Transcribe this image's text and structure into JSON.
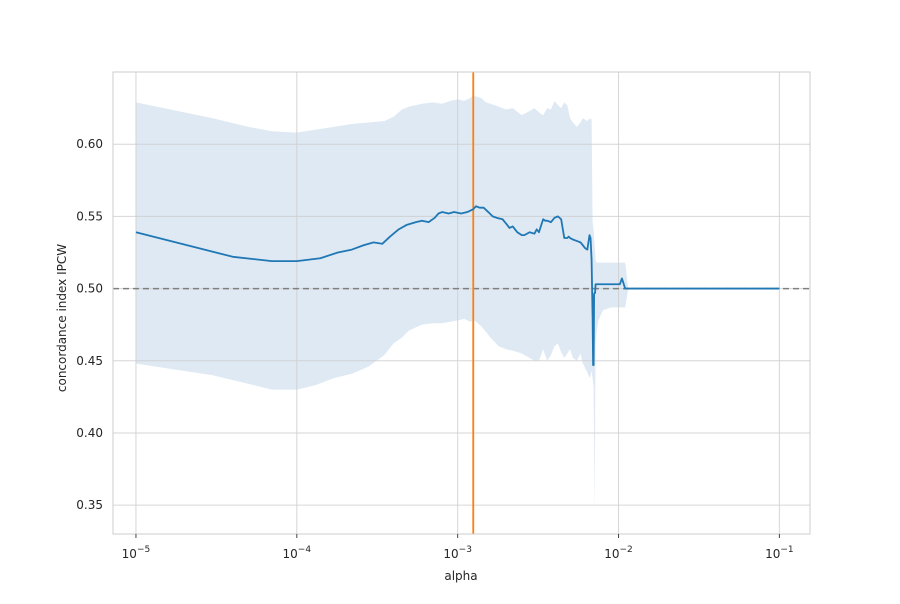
{
  "chart_data": {
    "type": "line",
    "title": "",
    "xlabel": "alpha",
    "ylabel": "concordance index IPCW",
    "x_scale": "log",
    "xlim": [
      7.2e-06,
      0.155
    ],
    "ylim": [
      0.33,
      0.65
    ],
    "grid": true,
    "x_ticks": [
      {
        "value": 1e-05,
        "base": "10",
        "exp": "−5"
      },
      {
        "value": 0.0001,
        "base": "10",
        "exp": "−4"
      },
      {
        "value": 0.001,
        "base": "10",
        "exp": "−3"
      },
      {
        "value": 0.01,
        "base": "10",
        "exp": "−2"
      },
      {
        "value": 0.1,
        "base": "10",
        "exp": "−1"
      }
    ],
    "y_ticks": [
      {
        "value": 0.35,
        "label": "0.35"
      },
      {
        "value": 0.4,
        "label": "0.40"
      },
      {
        "value": 0.45,
        "label": "0.45"
      },
      {
        "value": 0.5,
        "label": "0.50"
      },
      {
        "value": 0.55,
        "label": "0.55"
      },
      {
        "value": 0.6,
        "label": "0.60"
      }
    ],
    "colors": {
      "line": "#1f77b4",
      "band": "#dce8f2",
      "reference": "#7f7f7f",
      "best_alpha": "#ff7f0e",
      "grid": "#cfcfcf",
      "spine": "#cccccc"
    },
    "reference_line": {
      "y": 0.5,
      "style": "dashed"
    },
    "best_alpha_line": {
      "x": 0.00125
    },
    "series": [
      {
        "type": "line",
        "x": [
          1e-05,
          4e-05,
          7e-05,
          0.0001,
          0.00014,
          0.00018,
          0.00022,
          0.00026,
          0.0003,
          0.00034,
          0.00038,
          0.00043,
          0.00048,
          0.00055,
          0.0006,
          0.00066,
          0.00072,
          0.00076,
          0.0008,
          0.00088,
          0.00095,
          0.00105,
          0.00115,
          0.00125,
          0.0013,
          0.00137,
          0.00145,
          0.00155,
          0.00165,
          0.00175,
          0.0019,
          0.002,
          0.0021,
          0.0022,
          0.00235,
          0.0025,
          0.0026,
          0.0028,
          0.003,
          0.0031,
          0.0032,
          0.0034,
          0.0035,
          0.0036,
          0.0038,
          0.004,
          0.0042,
          0.0044,
          0.0046,
          0.0048,
          0.0049,
          0.005,
          0.0052,
          0.0055,
          0.0058,
          0.006,
          0.0062,
          0.0064,
          0.0066,
          0.0067,
          0.0068,
          0.0069,
          0.00695,
          0.007,
          0.00705,
          0.0071,
          0.00715,
          0.0072,
          0.0073,
          0.0075,
          0.008,
          0.009,
          0.0098,
          0.0102,
          0.0105,
          0.011,
          0.012,
          0.02,
          0.05,
          0.1
        ],
        "y": [
          0.539,
          0.522,
          0.519,
          0.519,
          0.521,
          0.525,
          0.527,
          0.53,
          0.532,
          0.531,
          0.536,
          0.541,
          0.544,
          0.546,
          0.547,
          0.546,
          0.549,
          0.552,
          0.553,
          0.552,
          0.553,
          0.552,
          0.553,
          0.555,
          0.557,
          0.556,
          0.556,
          0.553,
          0.55,
          0.549,
          0.548,
          0.545,
          0.542,
          0.543,
          0.539,
          0.537,
          0.537,
          0.539,
          0.538,
          0.541,
          0.539,
          0.548,
          0.547,
          0.547,
          0.546,
          0.549,
          0.55,
          0.548,
          0.535,
          0.535,
          0.536,
          0.535,
          0.534,
          0.533,
          0.532,
          0.53,
          0.528,
          0.527,
          0.537,
          0.535,
          0.52,
          0.48,
          0.447,
          0.447,
          0.496,
          0.497,
          0.497,
          0.503,
          0.503,
          0.503,
          0.503,
          0.503,
          0.503,
          0.503,
          0.507,
          0.5,
          0.5,
          0.5,
          0.5,
          0.5
        ]
      },
      {
        "type": "band",
        "x": [
          1e-05,
          3e-05,
          5e-05,
          7e-05,
          0.0001,
          0.00013,
          0.00017,
          0.00022,
          0.00028,
          0.00035,
          0.0004,
          0.00045,
          0.0005,
          0.0006,
          0.0007,
          0.0008,
          0.0009,
          0.001,
          0.0011,
          0.0012,
          0.00125,
          0.0013,
          0.0014,
          0.0015,
          0.0016,
          0.0018,
          0.002,
          0.0022,
          0.0025,
          0.0028,
          0.003,
          0.0032,
          0.0034,
          0.0036,
          0.0038,
          0.004,
          0.0042,
          0.0044,
          0.0046,
          0.0048,
          0.005,
          0.0052,
          0.0055,
          0.0058,
          0.006,
          0.0062,
          0.0064,
          0.0066,
          0.0067,
          0.0068,
          0.0069,
          0.007,
          0.0071,
          0.0072,
          0.0073,
          0.0075,
          0.008,
          0.009,
          0.0098,
          0.0103,
          0.0107,
          0.011,
          0.0115,
          0.0125,
          0.1
        ],
        "upper": [
          0.629,
          0.618,
          0.612,
          0.609,
          0.608,
          0.61,
          0.612,
          0.614,
          0.615,
          0.616,
          0.619,
          0.624,
          0.626,
          0.628,
          0.629,
          0.628,
          0.63,
          0.631,
          0.63,
          0.632,
          0.634,
          0.633,
          0.632,
          0.629,
          0.628,
          0.626,
          0.624,
          0.625,
          0.62,
          0.623,
          0.625,
          0.622,
          0.62,
          0.625,
          0.624,
          0.63,
          0.627,
          0.625,
          0.629,
          0.627,
          0.618,
          0.615,
          0.612,
          0.615,
          0.618,
          0.617,
          0.616,
          0.618,
          0.617,
          0.618,
          0.546,
          0.54,
          0.53,
          0.52,
          0.518,
          0.518,
          0.518,
          0.518,
          0.518,
          0.518,
          0.518,
          0.518,
          0.5,
          0.5,
          0.5
        ],
        "lower": [
          0.448,
          0.44,
          0.434,
          0.43,
          0.43,
          0.433,
          0.438,
          0.441,
          0.446,
          0.454,
          0.462,
          0.466,
          0.471,
          0.475,
          0.476,
          0.476,
          0.477,
          0.478,
          0.479,
          0.477,
          0.478,
          0.477,
          0.474,
          0.47,
          0.466,
          0.46,
          0.458,
          0.457,
          0.455,
          0.452,
          0.45,
          0.45,
          0.458,
          0.45,
          0.454,
          0.46,
          0.462,
          0.456,
          0.452,
          0.455,
          0.458,
          0.452,
          0.45,
          0.455,
          0.448,
          0.445,
          0.442,
          0.438,
          0.44,
          0.443,
          0.438,
          0.432,
          0.345,
          0.462,
          0.47,
          0.478,
          0.485,
          0.487,
          0.487,
          0.487,
          0.487,
          0.487,
          0.5,
          0.5,
          0.5
        ]
      }
    ]
  }
}
